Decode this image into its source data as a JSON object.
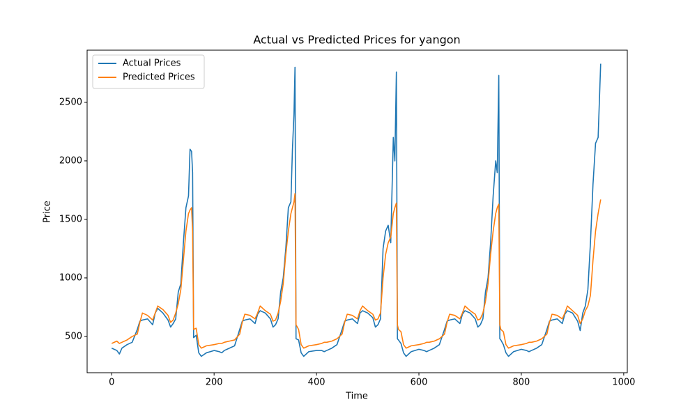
{
  "chart_data": {
    "type": "line",
    "title": "Actual vs Predicted Prices for yangon",
    "xlabel": "Time",
    "ylabel": "Price",
    "x": [
      0,
      10,
      15,
      20,
      30,
      40,
      50,
      55,
      60,
      70,
      80,
      85,
      90,
      100,
      110,
      115,
      120,
      125,
      130,
      135,
      140,
      145,
      150,
      153,
      156,
      158,
      160,
      165,
      170,
      175,
      185,
      200,
      210,
      215,
      220,
      230,
      240,
      250,
      255,
      260,
      270,
      280,
      285,
      290,
      300,
      310,
      315,
      320,
      325,
      330,
      335,
      340,
      345,
      350,
      353,
      356,
      358,
      360,
      365,
      370,
      375,
      385,
      400,
      410,
      415,
      420,
      430,
      440,
      450,
      455,
      460,
      470,
      480,
      485,
      490,
      500,
      510,
      515,
      520,
      525,
      530,
      535,
      540,
      545,
      550,
      553,
      556,
      558,
      560,
      565,
      570,
      575,
      585,
      600,
      610,
      615,
      620,
      630,
      640,
      650,
      655,
      660,
      670,
      680,
      685,
      690,
      700,
      710,
      715,
      720,
      725,
      730,
      735,
      740,
      745,
      750,
      753,
      756,
      758,
      760,
      765,
      770,
      775,
      785,
      800,
      810,
      815,
      820,
      830,
      840,
      850,
      855,
      860,
      870,
      880,
      885,
      890,
      900,
      910,
      915,
      920,
      925,
      930,
      935,
      940,
      945,
      950,
      955
    ],
    "series": [
      {
        "name": "Actual Prices",
        "color": "#1f77b4",
        "values": [
          400,
          380,
          350,
          400,
          430,
          450,
          560,
          630,
          640,
          650,
          600,
          700,
          740,
          700,
          640,
          580,
          610,
          650,
          880,
          950,
          1300,
          1600,
          1700,
          2100,
          2080,
          1900,
          490,
          510,
          360,
          330,
          360,
          380,
          370,
          360,
          380,
          400,
          420,
          560,
          630,
          640,
          650,
          610,
          690,
          720,
          700,
          650,
          580,
          600,
          650,
          880,
          1000,
          1250,
          1600,
          1650,
          2100,
          2400,
          2800,
          480,
          470,
          360,
          330,
          370,
          380,
          380,
          370,
          380,
          400,
          430,
          560,
          630,
          640,
          650,
          610,
          700,
          720,
          700,
          660,
          580,
          600,
          650,
          1250,
          1400,
          1450,
          1300,
          2200,
          2000,
          2760,
          480,
          470,
          440,
          360,
          330,
          370,
          390,
          380,
          370,
          380,
          400,
          430,
          560,
          630,
          640,
          650,
          610,
          690,
          720,
          700,
          650,
          580,
          600,
          650,
          880,
          1000,
          1300,
          1700,
          2000,
          1900,
          2730,
          480,
          470,
          430,
          360,
          330,
          370,
          390,
          380,
          370,
          380,
          400,
          430,
          560,
          630,
          640,
          650,
          610,
          690,
          720,
          700,
          630,
          550,
          700,
          760,
          900,
          1300,
          1800,
          2150,
          2200,
          2830
        ]
      },
      {
        "name": "Predicted Prices",
        "color": "#ff7f0e",
        "values": [
          440,
          460,
          440,
          450,
          470,
          500,
          520,
          620,
          700,
          680,
          640,
          700,
          760,
          730,
          680,
          620,
          640,
          700,
          780,
          900,
          1150,
          1400,
          1550,
          1580,
          1600,
          1400,
          560,
          570,
          430,
          400,
          420,
          430,
          440,
          440,
          450,
          460,
          470,
          520,
          620,
          690,
          680,
          650,
          700,
          760,
          720,
          690,
          630,
          640,
          700,
          800,
          950,
          1200,
          1400,
          1550,
          1600,
          1650,
          1720,
          600,
          560,
          430,
          400,
          420,
          430,
          440,
          450,
          450,
          460,
          480,
          520,
          620,
          690,
          680,
          650,
          720,
          760,
          720,
          690,
          640,
          650,
          700,
          1000,
          1200,
          1300,
          1350,
          1550,
          1600,
          1640,
          600,
          560,
          540,
          430,
          400,
          420,
          430,
          440,
          450,
          450,
          460,
          480,
          520,
          620,
          690,
          680,
          650,
          700,
          760,
          720,
          690,
          640,
          650,
          700,
          800,
          950,
          1200,
          1400,
          1550,
          1600,
          1630,
          600,
          560,
          540,
          430,
          400,
          420,
          430,
          440,
          450,
          450,
          460,
          480,
          520,
          620,
          690,
          680,
          650,
          700,
          760,
          720,
          680,
          610,
          650,
          720,
          760,
          850,
          1150,
          1400,
          1550,
          1670
        ]
      }
    ],
    "xlim": [
      -48,
      1007
    ],
    "ylim": [
      190,
      2946
    ],
    "xticks": [
      0,
      200,
      400,
      600,
      800,
      1000
    ],
    "yticks": [
      500,
      1000,
      1500,
      2000,
      2500
    ],
    "grid": false,
    "legend": "upper left"
  }
}
